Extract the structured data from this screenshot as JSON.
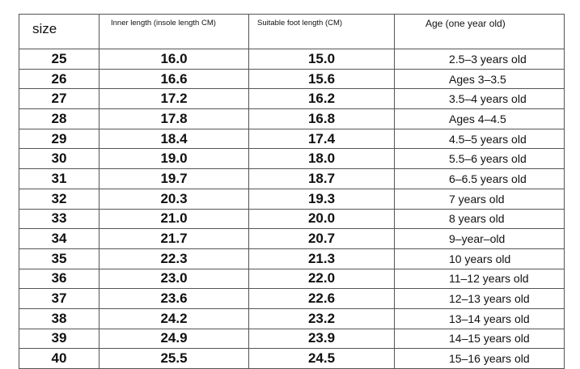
{
  "table": {
    "header": [
      "size",
      "Inner length (insole length CM)",
      "Suitable foot length (CM)",
      "Age (one year old)"
    ],
    "rows": [
      [
        "25",
        "16.0",
        "15.0",
        "2.5–3 years old"
      ],
      [
        "26",
        "16.6",
        "15.6",
        "Ages 3–3.5"
      ],
      [
        "27",
        "17.2",
        "16.2",
        "3.5–4 years old"
      ],
      [
        "28",
        "17.8",
        "16.8",
        "Ages 4–4.5"
      ],
      [
        "29",
        "18.4",
        "17.4",
        "4.5–5 years old"
      ],
      [
        "30",
        "19.0",
        "18.0",
        "5.5–6 years old"
      ],
      [
        "31",
        "19.7",
        "18.7",
        "6–6.5 years old"
      ],
      [
        "32",
        "20.3",
        "19.3",
        "7 years old"
      ],
      [
        "33",
        "21.0",
        "20.0",
        "8 years old"
      ],
      [
        "34",
        "21.7",
        "20.7",
        "9–year–old"
      ],
      [
        "35",
        "22.3",
        "21.3",
        "10 years old"
      ],
      [
        "36",
        "23.0",
        "22.0",
        "11–12 years old"
      ],
      [
        "37",
        "23.6",
        "22.6",
        "12–13 years old"
      ],
      [
        "38",
        "24.2",
        "23.2",
        "13–14 years old"
      ],
      [
        "39",
        "24.9",
        "23.9",
        "14–15 years old"
      ],
      [
        "40",
        "25.5",
        "24.5",
        "15–16 years old"
      ]
    ]
  }
}
